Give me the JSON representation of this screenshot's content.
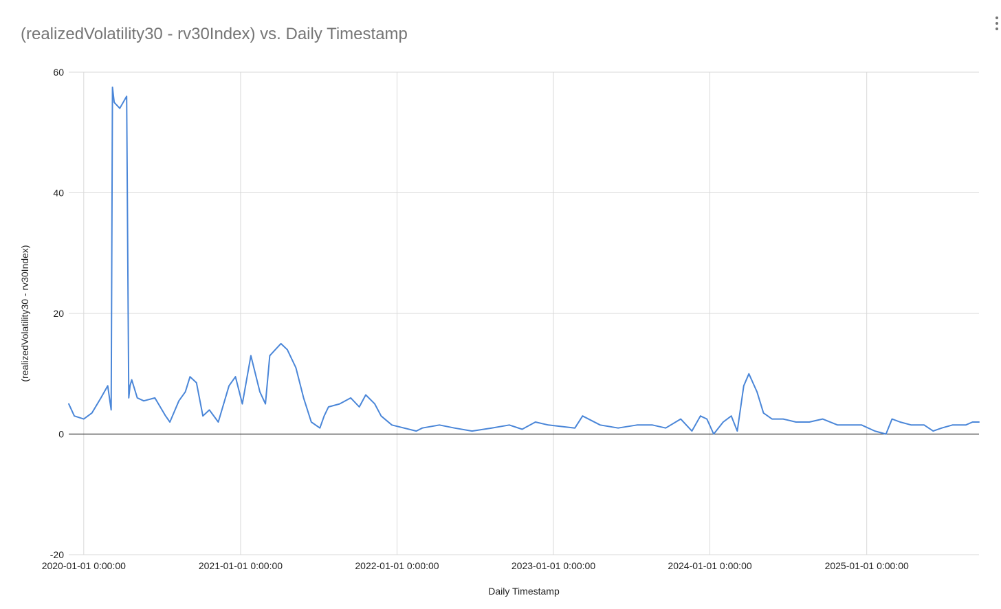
{
  "chart": {
    "title": "(realizedVolatility30 - rv30Index) vs. Daily Timestamp",
    "menu_icon": "more-vert-icon"
  },
  "chart_data": {
    "type": "line",
    "title": "(realizedVolatility30 - rv30Index) vs. Daily Timestamp",
    "xlabel": "Daily Timestamp",
    "ylabel": "(realizedVolatility30 - rv30Index)",
    "ylim": [
      -20,
      60
    ],
    "y_ticks": [
      "60",
      "40",
      "20",
      "0",
      "-20"
    ],
    "x_ticks": [
      "2020-01-01 0:00:00",
      "2021-01-01 0:00:00",
      "2022-01-01 0:00:00",
      "2023-01-01 0:00:00",
      "2024-01-01 0:00:00",
      "2025-01-01 0:00:00"
    ],
    "grid": true,
    "legend": "none",
    "series_color": "#4a86d8",
    "series": [
      {
        "x": [
          "2019-11-27",
          "2019-12-10",
          "2020-01-01",
          "2020-01-20",
          "2020-02-10",
          "2020-02-26",
          "2020-03-05",
          "2020-03-08",
          "2020-03-12",
          "2020-03-25",
          "2020-04-10",
          "2020-04-15",
          "2020-04-18",
          "2020-04-22",
          "2020-05-05",
          "2020-05-20",
          "2020-06-15",
          "2020-07-10",
          "2020-07-20",
          "2020-08-10",
          "2020-08-25",
          "2020-09-05",
          "2020-09-20",
          "2020-10-05",
          "2020-10-20",
          "2020-11-10",
          "2020-12-05",
          "2020-12-20",
          "2021-01-05",
          "2021-01-25",
          "2021-02-15",
          "2021-02-28",
          "2021-03-10",
          "2021-04-05",
          "2021-04-20",
          "2021-05-10",
          "2021-05-28",
          "2021-06-15",
          "2021-07-05",
          "2021-07-15",
          "2021-07-25",
          "2021-08-20",
          "2021-09-15",
          "2021-10-05",
          "2021-10-20",
          "2021-11-10",
          "2021-11-25",
          "2021-12-20",
          "2022-02-15",
          "2022-03-01",
          "2022-04-10",
          "2022-05-15",
          "2022-06-25",
          "2022-08-10",
          "2022-09-20",
          "2022-10-20",
          "2022-11-20",
          "2022-12-20",
          "2023-02-20",
          "2023-03-10",
          "2023-04-20",
          "2023-06-01",
          "2023-07-15",
          "2023-08-20",
          "2023-09-20",
          "2023-10-25",
          "2023-11-20",
          "2023-12-10",
          "2023-12-25",
          "2024-01-10",
          "2024-02-01",
          "2024-02-20",
          "2024-03-05",
          "2024-03-20",
          "2024-04-01",
          "2024-04-20",
          "2024-05-05",
          "2024-05-25",
          "2024-06-20",
          "2024-07-20",
          "2024-08-20",
          "2024-09-20",
          "2024-10-25",
          "2024-11-20",
          "2024-12-20",
          "2025-01-20",
          "2025-02-15",
          "2025-03-01",
          "2025-03-20",
          "2025-04-15",
          "2025-05-15",
          "2025-06-05",
          "2025-06-25",
          "2025-07-20",
          "2025-08-20",
          "2025-09-05",
          "2025-09-20"
        ],
        "y": [
          5,
          3,
          2.5,
          3.5,
          6,
          8,
          4,
          57.5,
          55,
          54,
          56,
          6,
          8,
          9,
          6,
          5.5,
          6,
          3,
          2,
          5.5,
          7,
          9.5,
          8.5,
          3,
          4,
          2,
          8,
          9.5,
          5,
          13,
          7,
          5,
          13,
          15,
          14,
          11,
          6,
          2,
          1,
          3,
          4.5,
          5,
          6,
          4.5,
          6.5,
          5,
          3,
          1.5,
          0.5,
          1,
          1.5,
          1,
          0.5,
          1,
          1.5,
          0.8,
          2,
          1.5,
          1,
          3,
          1.5,
          1,
          1.5,
          1.5,
          1,
          2.5,
          0.5,
          3,
          2.5,
          0,
          2,
          3,
          0.5,
          8,
          10,
          7,
          3.5,
          2.5,
          2.5,
          2,
          2,
          2.5,
          1.5,
          1.5,
          1.5,
          0.5,
          0,
          2.5,
          2,
          1.5,
          1.5,
          0.5,
          1,
          1.5,
          1.5,
          2,
          2
        ]
      }
    ]
  }
}
